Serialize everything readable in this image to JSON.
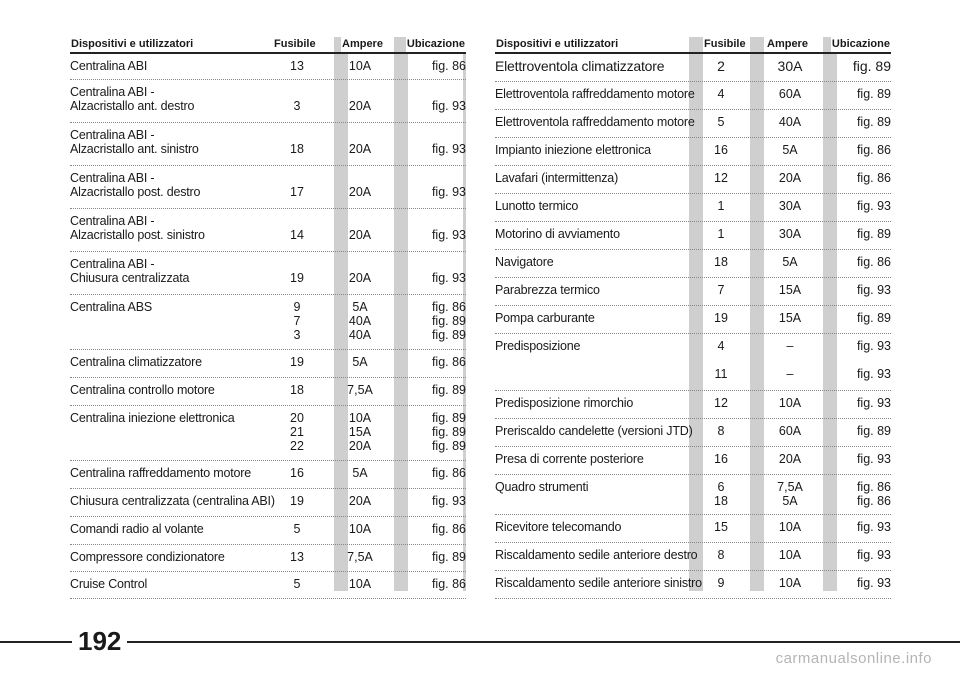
{
  "headers": {
    "name": "Dispositivi e utilizzatori",
    "fuse": "Fusibile",
    "amp": "Ampere",
    "loc": "Ubicazione"
  },
  "left_rows": [
    {
      "name": "Centralina ABI",
      "fuse": "13",
      "amp": "10A",
      "loc": "fig. 86"
    },
    {
      "name": "Centralina ABI -\nAlzacristallo ant. destro",
      "fuse": "\n3",
      "amp": "\n20A",
      "loc": "\nfig. 93"
    },
    {
      "name": "Centralina ABI -\nAlzacristallo ant. sinistro",
      "fuse": "\n18",
      "amp": "\n20A",
      "loc": "\nfig. 93"
    },
    {
      "name": "Centralina ABI -\nAlzacristallo post. destro",
      "fuse": "\n17",
      "amp": "\n20A",
      "loc": "\nfig. 93"
    },
    {
      "name": "Centralina ABI -\nAlzacristallo post. sinistro",
      "fuse": "\n14",
      "amp": "\n20A",
      "loc": "\nfig. 93"
    },
    {
      "name": "Centralina ABI -\nChiusura centralizzata",
      "fuse": "\n19",
      "amp": "\n20A",
      "loc": "\nfig. 93"
    },
    {
      "name": "Centralina ABS",
      "fuse": "9\n7\n3",
      "amp": "5A\n40A\n40A",
      "loc": "fig. 86\nfig. 89\nfig. 89"
    },
    {
      "name": "Centralina climatizzatore",
      "fuse": "19",
      "amp": "5A",
      "loc": "fig. 86"
    },
    {
      "name": "Centralina controllo motore",
      "fuse": "18",
      "amp": "7,5A",
      "loc": "fig. 89"
    },
    {
      "name": "Centralina iniezione elettronica",
      "fuse": "20\n21\n22",
      "amp": "10A\n15A\n20A",
      "loc": "fig. 89\nfig. 89\nfig. 89"
    },
    {
      "name": "Centralina raffreddamento motore",
      "fuse": "16",
      "amp": "5A",
      "loc": "fig. 86"
    },
    {
      "name": "Chiusura centralizzata (centralina ABI)",
      "fuse": "19",
      "amp": "20A",
      "loc": "fig. 93"
    },
    {
      "name": "Comandi radio al volante",
      "fuse": "5",
      "amp": "10A",
      "loc": "fig. 86"
    },
    {
      "name": "Compressore condizionatore",
      "fuse": "13",
      "amp": "7,5A",
      "loc": "fig. 89"
    },
    {
      "name": "Cruise Control",
      "fuse": "5",
      "amp": "10A",
      "loc": "fig. 86"
    }
  ],
  "right_rows": [
    {
      "name": "Elettroventola climatizzatore",
      "fuse": "2",
      "amp": "30A",
      "loc": "fig. 89"
    },
    {
      "name": "Elettroventola raffreddamento motore",
      "fuse": "4",
      "amp": "60A",
      "loc": "fig. 89"
    },
    {
      "name": "Elettroventola raffreddamento motore",
      "fuse": "5",
      "amp": "40A",
      "loc": "fig. 89"
    },
    {
      "name": "Impianto iniezione elettronica",
      "fuse": "16",
      "amp": "5A",
      "loc": "fig. 86"
    },
    {
      "name": "Lavafari (intermittenza)",
      "fuse": "12",
      "amp": "20A",
      "loc": "fig. 86"
    },
    {
      "name": "Lunotto termico",
      "fuse": "1",
      "amp": "30A",
      "loc": "fig. 93"
    },
    {
      "name": "Motorino di avviamento",
      "fuse": "1",
      "amp": "30A",
      "loc": "fig. 89"
    },
    {
      "name": "Navigatore",
      "fuse": "18",
      "amp": "5A",
      "loc": "fig. 86"
    },
    {
      "name": "Parabrezza termico",
      "fuse": "7",
      "amp": "15A",
      "loc": "fig. 93"
    },
    {
      "name": "Pompa carburante",
      "fuse": "19",
      "amp": "15A",
      "loc": "fig. 89"
    },
    {
      "name": "Predisposizione",
      "fuse": "4\n\n11",
      "amp": "–\n\n–",
      "loc": "fig. 93\n\nfig. 93"
    },
    {
      "name": "Predisposizione rimorchio",
      "fuse": "12",
      "amp": "10A",
      "loc": "fig. 93"
    },
    {
      "name": "Preriscaldo candelette (versioni JTD)",
      "fuse": "8",
      "amp": "60A",
      "loc": "fig. 89"
    },
    {
      "name": "Presa di corrente posteriore",
      "fuse": "16",
      "amp": "20A",
      "loc": "fig. 93"
    },
    {
      "name": "Quadro strumenti",
      "fuse": "6\n18",
      "amp": "7,5A\n5A",
      "loc": "fig. 86\nfig. 86"
    },
    {
      "name": "Ricevitore telecomando",
      "fuse": "15",
      "amp": "10A",
      "loc": "fig. 93"
    },
    {
      "name": "Riscaldamento sedile anteriore destro",
      "fuse": "8",
      "amp": "10A",
      "loc": "fig. 93"
    },
    {
      "name": "Riscaldamento sedile anteriore sinistro",
      "fuse": "9",
      "amp": "10A",
      "loc": "fig. 93"
    }
  ],
  "page_number": "192",
  "watermark": "carmanualsonline.info"
}
